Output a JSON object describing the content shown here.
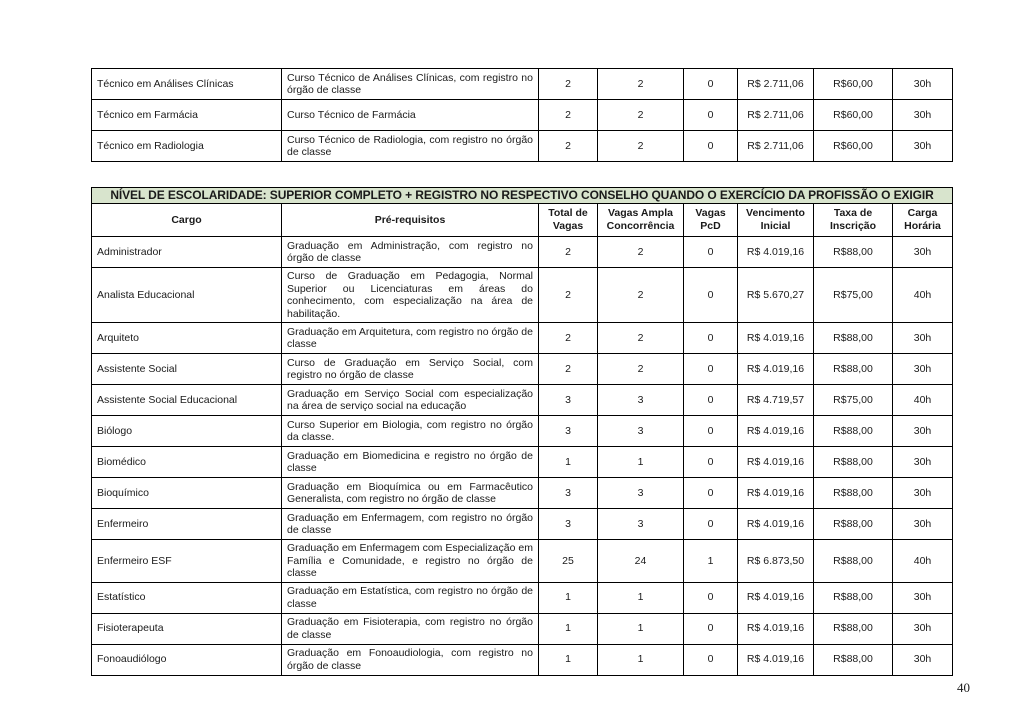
{
  "page": {
    "number": "40"
  },
  "colors": {
    "section_header_bg": "#d8e4cd",
    "table_border": "#000000"
  },
  "columns": {
    "cargo": "Cargo",
    "requisitos": "Pré-requisitos",
    "total": "Total de Vagas",
    "ampla": "Vagas Ampla Concorrência",
    "pcd": "Vagas PcD",
    "vencimento": "Vencimento Inicial",
    "taxa": "Taxa de Inscrição",
    "carga": "Carga Horária"
  },
  "table_tecnico": {
    "rows": [
      {
        "cargo": "Técnico em Análises Clínicas",
        "requisitos": "Curso Técnico de Análises Clínicas, com registro no órgão de classe",
        "total": "2",
        "ampla": "2",
        "pcd": "0",
        "vencimento": "R$ 2.711,06",
        "taxa": "R$60,00",
        "carga": "30h"
      },
      {
        "cargo": "Técnico em Farmácia",
        "requisitos": "Curso Técnico de Farmácia",
        "total": "2",
        "ampla": "2",
        "pcd": "0",
        "vencimento": "R$ 2.711,06",
        "taxa": "R$60,00",
        "carga": "30h"
      },
      {
        "cargo": "Técnico em Radiologia",
        "requisitos": "Curso Técnico de Radiologia, com registro no órgão de classe",
        "total": "2",
        "ampla": "2",
        "pcd": "0",
        "vencimento": "R$ 2.711,06",
        "taxa": "R$60,00",
        "carga": "30h"
      }
    ]
  },
  "table_superior": {
    "section_title": "NÍVEL DE ESCOLARIDADE: SUPERIOR COMPLETO + REGISTRO NO RESPECTIVO CONSELHO QUANDO O EXERCÍCIO DA PROFISSÃO O EXIGIR",
    "rows": [
      {
        "cargo": "Administrador",
        "requisitos": "Graduação em Administração, com registro no órgão de classe",
        "total": "2",
        "ampla": "2",
        "pcd": "0",
        "vencimento": "R$ 4.019,16",
        "taxa": "R$88,00",
        "carga": "30h"
      },
      {
        "cargo": "Analista Educacional",
        "requisitos": "Curso de Graduação em Pedagogia, Normal Superior ou Licenciaturas em áreas do conhecimento, com especialização na área de habilitação.",
        "total": "2",
        "ampla": "2",
        "pcd": "0",
        "vencimento": "R$ 5.670,27",
        "taxa": "R$75,00",
        "carga": "40h"
      },
      {
        "cargo": "Arquiteto",
        "requisitos": "Graduação em Arquitetura, com registro no órgão de classe",
        "total": "2",
        "ampla": "2",
        "pcd": "0",
        "vencimento": "R$ 4.019,16",
        "taxa": "R$88,00",
        "carga": "30h"
      },
      {
        "cargo": "Assistente Social",
        "requisitos": "Curso de Graduação em Serviço Social, com registro no órgão de classe",
        "total": "2",
        "ampla": "2",
        "pcd": "0",
        "vencimento": "R$ 4.019,16",
        "taxa": "R$88,00",
        "carga": "30h"
      },
      {
        "cargo": "Assistente Social Educacional",
        "requisitos": "Graduação em Serviço Social com especialização na área de serviço social na educação",
        "total": "3",
        "ampla": "3",
        "pcd": "0",
        "vencimento": "R$ 4.719,57",
        "taxa": "R$75,00",
        "carga": "40h"
      },
      {
        "cargo": "Biólogo",
        "requisitos": "Curso Superior em Biologia, com registro no órgão da classe.",
        "total": "3",
        "ampla": "3",
        "pcd": "0",
        "vencimento": "R$ 4.019,16",
        "taxa": "R$88,00",
        "carga": "30h"
      },
      {
        "cargo": "Biomédico",
        "requisitos": "Graduação em Biomedicina e registro no órgão de classe",
        "total": "1",
        "ampla": "1",
        "pcd": "0",
        "vencimento": "R$ 4.019,16",
        "taxa": "R$88,00",
        "carga": "30h"
      },
      {
        "cargo": "Bioquímico",
        "requisitos": "Graduação em Bioquímica ou em Farmacêutico Generalista, com registro no órgão de classe",
        "total": "3",
        "ampla": "3",
        "pcd": "0",
        "vencimento": "R$ 4.019,16",
        "taxa": "R$88,00",
        "carga": "30h"
      },
      {
        "cargo": "Enfermeiro",
        "requisitos": "Graduação em Enfermagem, com registro no órgão de classe",
        "total": "3",
        "ampla": "3",
        "pcd": "0",
        "vencimento": "R$ 4.019,16",
        "taxa": "R$88,00",
        "carga": "30h"
      },
      {
        "cargo": "Enfermeiro ESF",
        "requisitos": "Graduação em Enfermagem com Especialização em Família e Comunidade, e registro no órgão de classe",
        "total": "25",
        "ampla": "24",
        "pcd": "1",
        "vencimento": "R$ 6.873,50",
        "taxa": "R$88,00",
        "carga": "40h"
      },
      {
        "cargo": "Estatístico",
        "requisitos": "Graduação em Estatística, com registro no órgão de classe",
        "total": "1",
        "ampla": "1",
        "pcd": "0",
        "vencimento": "R$ 4.019,16",
        "taxa": "R$88,00",
        "carga": "30h"
      },
      {
        "cargo": "Fisioterapeuta",
        "requisitos": "Graduação em Fisioterapia, com registro no órgão de classe",
        "total": "1",
        "ampla": "1",
        "pcd": "0",
        "vencimento": "R$ 4.019,16",
        "taxa": "R$88,00",
        "carga": "30h"
      },
      {
        "cargo": "Fonoaudiólogo",
        "requisitos": "Graduação em Fonoaudiologia, com registro no órgão de classe",
        "total": "1",
        "ampla": "1",
        "pcd": "0",
        "vencimento": "R$ 4.019,16",
        "taxa": "R$88,00",
        "carga": "30h"
      }
    ]
  }
}
